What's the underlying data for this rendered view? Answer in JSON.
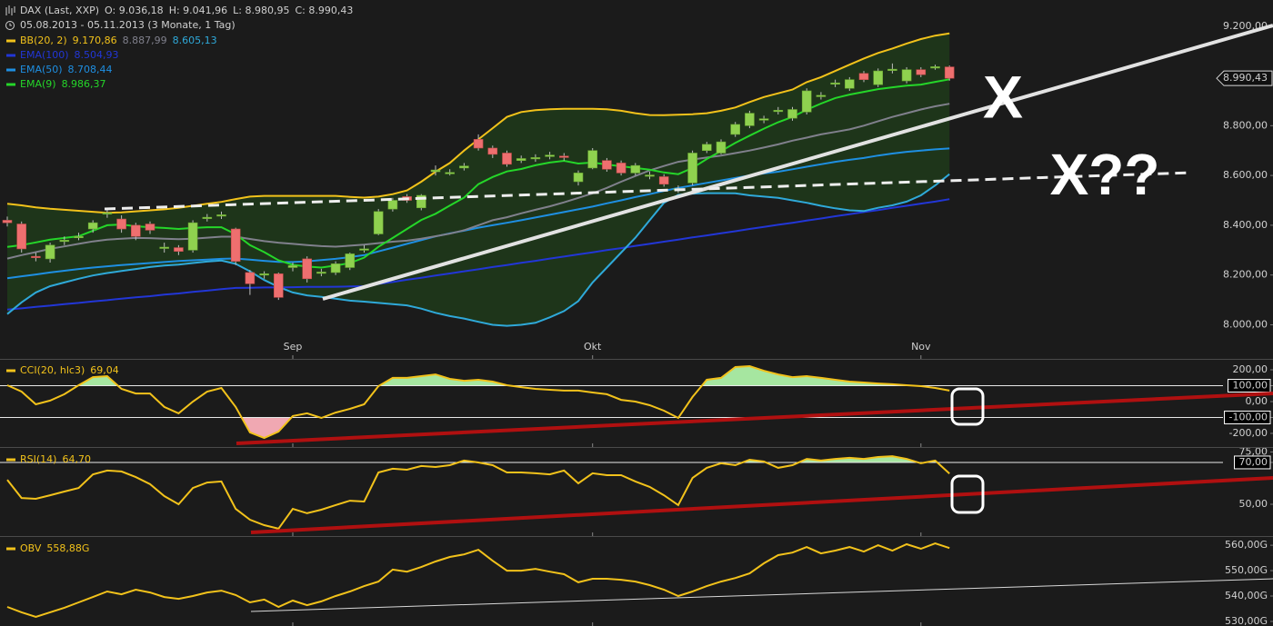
{
  "chart_data": [
    {
      "type": "candlestick",
      "title": "DAX (Last, XXP)",
      "ohlc_labels": [
        "O: 9.036,18",
        "H: 9.041,96",
        "L: 8.980,95",
        "C: 8.990,43"
      ],
      "subtitle": "05.08.2013 - 05.11.2013 (3 Monate, 1 Tag)",
      "close_label": "8.990,43",
      "annotations": [
        "X",
        "X??"
      ],
      "categories": [
        null,
        null,
        null,
        null,
        null,
        null,
        null,
        null,
        null,
        null,
        null,
        null,
        null,
        null,
        null,
        null,
        null,
        null,
        null,
        null,
        "Sep",
        null,
        null,
        null,
        null,
        null,
        null,
        null,
        null,
        null,
        null,
        null,
        null,
        null,
        null,
        null,
        null,
        null,
        null,
        null,
        null,
        "Okt",
        null,
        null,
        null,
        null,
        null,
        null,
        null,
        null,
        null,
        null,
        null,
        null,
        null,
        null,
        null,
        null,
        null,
        null,
        null,
        null,
        null,
        null,
        "Nov",
        null,
        null
      ],
      "open": [
        8420,
        8405,
        8275,
        8265,
        8335,
        8350,
        8385,
        8445,
        8425,
        8400,
        8405,
        8310,
        8310,
        8300,
        8428,
        8438,
        8385,
        8210,
        8200,
        8205,
        8230,
        8265,
        8210,
        8210,
        8230,
        8300,
        8365,
        8465,
        8515,
        8470,
        8615,
        8608,
        8630,
        8745,
        8710,
        8690,
        8660,
        8668,
        8676,
        8678,
        8575,
        8630,
        8660,
        8650,
        8610,
        8598,
        8595,
        8543,
        8570,
        8700,
        8690,
        8765,
        8800,
        8822,
        8858,
        8830,
        8855,
        8918,
        8968,
        8950,
        9010,
        8965,
        9023,
        8980,
        9025,
        9033,
        9036.18
      ],
      "high": [
        8435,
        8415,
        8290,
        8330,
        8355,
        8370,
        8420,
        8465,
        8440,
        8410,
        8415,
        8330,
        8320,
        8420,
        8445,
        8455,
        8390,
        8220,
        8215,
        8210,
        8250,
        8275,
        8225,
        8255,
        8290,
        8320,
        8465,
        8510,
        8525,
        8525,
        8640,
        8625,
        8650,
        8765,
        8720,
        8700,
        8680,
        8685,
        8695,
        8690,
        8620,
        8710,
        8670,
        8660,
        8650,
        8615,
        8605,
        8560,
        8700,
        8735,
        8745,
        8815,
        8860,
        8840,
        8875,
        8875,
        8950,
        8935,
        8985,
        8995,
        9020,
        9030,
        9050,
        9035,
        9035,
        9045,
        9041.96
      ],
      "low": [
        8395,
        8290,
        8255,
        8250,
        8320,
        8340,
        8370,
        8430,
        8370,
        8340,
        8365,
        8290,
        8280,
        8290,
        8415,
        8425,
        8240,
        8120,
        8185,
        8100,
        8215,
        8170,
        8195,
        8200,
        8220,
        8290,
        8360,
        8455,
        8490,
        8460,
        8600,
        8600,
        8620,
        8700,
        8670,
        8635,
        8650,
        8655,
        8665,
        8660,
        8560,
        8625,
        8615,
        8600,
        8600,
        8585,
        8555,
        8530,
        8560,
        8690,
        8685,
        8755,
        8790,
        8810,
        8845,
        8820,
        8845,
        8905,
        8955,
        8940,
        8975,
        8955,
        9010,
        8970,
        8995,
        9025,
        8980.95
      ],
      "close": [
        8410,
        8305,
        8270,
        8320,
        8340,
        8355,
        8410,
        8450,
        8385,
        8355,
        8380,
        8312,
        8295,
        8410,
        8432,
        8442,
        8255,
        8165,
        8205,
        8110,
        8238,
        8185,
        8212,
        8245,
        8285,
        8305,
        8455,
        8500,
        8500,
        8520,
        8622,
        8612,
        8638,
        8710,
        8685,
        8645,
        8668,
        8672,
        8682,
        8672,
        8610,
        8700,
        8625,
        8610,
        8640,
        8602,
        8565,
        8547,
        8690,
        8725,
        8735,
        8805,
        8850,
        8828,
        8862,
        8865,
        8940,
        8922,
        8972,
        8985,
        8985,
        9020,
        9027,
        9025,
        9005,
        9037,
        8990.43
      ],
      "up_color": "#8fd14f",
      "down_color": "#ee6f6f",
      "band_fill": "#1f3a1a",
      "series": [
        {
          "name": "BB(20, 2)",
          "color": "#f2c21b",
          "last_label": "9.170,86",
          "values": [
            8486,
            8480,
            8472,
            8466,
            8462,
            8458,
            8454,
            8450,
            8452,
            8456,
            8460,
            8464,
            8470,
            8478,
            8486,
            8494,
            8505,
            8515,
            8518,
            8518,
            8518,
            8518,
            8518,
            8518,
            8514,
            8511,
            8515,
            8525,
            8540,
            8575,
            8615,
            8650,
            8700,
            8745,
            8790,
            8835,
            8855,
            8862,
            8866,
            8868,
            8868,
            8868,
            8866,
            8860,
            8850,
            8843,
            8842,
            8844,
            8846,
            8850,
            8860,
            8873,
            8895,
            8915,
            8930,
            8945,
            8975,
            8995,
            9020,
            9045,
            9070,
            9092,
            9110,
            9130,
            9148,
            9162,
            9170.86
          ]
        },
        {
          "color": "#80808c",
          "last_label": "8.887,99",
          "values": [
            8266,
            8280,
            8292,
            8305,
            8315,
            8325,
            8335,
            8342,
            8346,
            8349,
            8348,
            8346,
            8344,
            8346,
            8350,
            8354,
            8354,
            8345,
            8336,
            8330,
            8325,
            8320,
            8316,
            8314,
            8318,
            8322,
            8328,
            8334,
            8338,
            8346,
            8356,
            8366,
            8380,
            8400,
            8420,
            8432,
            8448,
            8462,
            8476,
            8492,
            8510,
            8528,
            8550,
            8575,
            8598,
            8620,
            8638,
            8655,
            8664,
            8672,
            8680,
            8690,
            8700,
            8712,
            8725,
            8740,
            8752,
            8765,
            8775,
            8785,
            8800,
            8818,
            8835,
            8850,
            8865,
            8878,
            8887.99
          ]
        },
        {
          "color": "#2fa9d9",
          "last_label": "8.605,13",
          "values": [
            8043,
            8090,
            8130,
            8155,
            8170,
            8185,
            8198,
            8208,
            8216,
            8224,
            8232,
            8238,
            8242,
            8248,
            8254,
            8258,
            8245,
            8215,
            8180,
            8152,
            8130,
            8118,
            8112,
            8105,
            8097,
            8093,
            8088,
            8083,
            8078,
            8065,
            8048,
            8035,
            8025,
            8012,
            8000,
            7996,
            8000,
            8008,
            8030,
            8055,
            8095,
            8170,
            8230,
            8290,
            8350,
            8420,
            8490,
            8522,
            8527,
            8529,
            8529,
            8528,
            8520,
            8515,
            8510,
            8500,
            8490,
            8478,
            8468,
            8460,
            8457,
            8470,
            8480,
            8495,
            8520,
            8560,
            8605.13
          ]
        },
        {
          "name": "EMA(100)",
          "color": "#2236d6",
          "last_label": "8.504,93",
          "values": [
            8061,
            8066,
            8072,
            8077,
            8083,
            8088,
            8094,
            8099,
            8105,
            8110,
            8115,
            8121,
            8126,
            8132,
            8137,
            8143,
            8148,
            8149,
            8150,
            8150,
            8151,
            8152,
            8152,
            8153,
            8154,
            8155,
            8164,
            8172,
            8181,
            8189,
            8198,
            8206,
            8215,
            8223,
            8232,
            8240,
            8249,
            8257,
            8266,
            8274,
            8283,
            8291,
            8300,
            8308,
            8317,
            8325,
            8334,
            8342,
            8351,
            8359,
            8368,
            8376,
            8385,
            8393,
            8402,
            8410,
            8419,
            8427,
            8436,
            8444,
            8453,
            8461,
            8470,
            8478,
            8487,
            8495,
            8504.93
          ]
        },
        {
          "name": "EMA(50)",
          "color": "#1e8fe2",
          "last_label": "8.708,44",
          "values": [
            8187,
            8195,
            8202,
            8210,
            8217,
            8224,
            8230,
            8235,
            8240,
            8244,
            8248,
            8252,
            8256,
            8259,
            8262,
            8265,
            8266,
            8262,
            8257,
            8253,
            8252,
            8255,
            8260,
            8265,
            8272,
            8280,
            8295,
            8310,
            8325,
            8340,
            8355,
            8367,
            8378,
            8390,
            8400,
            8410,
            8420,
            8431,
            8442,
            8453,
            8464,
            8475,
            8488,
            8500,
            8513,
            8525,
            8538,
            8550,
            8560,
            8570,
            8580,
            8590,
            8600,
            8608,
            8615,
            8625,
            8635,
            8645,
            8655,
            8663,
            8670,
            8680,
            8688,
            8695,
            8700,
            8705,
            8708.44
          ]
        },
        {
          "name": "EMA(9)",
          "color": "#25d629",
          "last_label": "8.986,37",
          "values": [
            8313,
            8320,
            8331,
            8342,
            8349,
            8356,
            8378,
            8400,
            8403,
            8396,
            8392,
            8389,
            8385,
            8389,
            8392,
            8392,
            8364,
            8320,
            8292,
            8259,
            8241,
            8234,
            8230,
            8238,
            8248,
            8270,
            8313,
            8349,
            8385,
            8421,
            8446,
            8479,
            8511,
            8565,
            8594,
            8616,
            8626,
            8641,
            8652,
            8659,
            8648,
            8652,
            8644,
            8637,
            8630,
            8623,
            8612,
            8605,
            8630,
            8666,
            8698,
            8731,
            8760,
            8788,
            8814,
            8835,
            8864,
            8889,
            8911,
            8925,
            8936,
            8947,
            8954,
            8961,
            8965,
            8976,
            8986.37
          ]
        }
      ],
      "ylim": [
        7863,
        9305
      ],
      "yticks": [
        {
          "value": 8000,
          "label": "8.000,00"
        },
        {
          "value": 8200,
          "label": "8.200,00"
        },
        {
          "value": 8400,
          "label": "8.400,00"
        },
        {
          "value": 8600,
          "label": "8.600,00"
        },
        {
          "value": 8800,
          "label": "8.800,00"
        },
        {
          "value": 9200,
          "label": "9.200,00"
        }
      ]
    },
    {
      "type": "line",
      "name": "CCI(20, hlc3)",
      "last_label": "69,04",
      "color": "#f2c21b",
      "overbought_fill": "#a6e6a0",
      "oversold_fill": "#f0a8b2",
      "values": [
        103,
        63,
        -17,
        6,
        46,
        103,
        154,
        160,
        80,
        51,
        51,
        -34,
        -74,
        0,
        63,
        86,
        -34,
        -194,
        -229,
        -189,
        -91,
        -74,
        -103,
        -69,
        -46,
        -17,
        97,
        149,
        149,
        160,
        171,
        143,
        131,
        137,
        126,
        103,
        91,
        80,
        74,
        69,
        69,
        57,
        46,
        11,
        0,
        -23,
        -57,
        -103,
        29,
        137,
        149,
        217,
        223,
        194,
        171,
        154,
        160,
        149,
        137,
        126,
        120,
        114,
        109,
        103,
        97,
        86,
        69.04
      ],
      "ylim": [
        -286,
        263
      ],
      "yticks": [
        {
          "value": 200,
          "label": "200,00"
        },
        {
          "value": 100,
          "label": "100,00"
        },
        {
          "value": 0,
          "label": "0,00"
        },
        {
          "value": -100,
          "label": "-100,00"
        },
        {
          "value": -200,
          "label": "-200,00"
        }
      ],
      "reference_lines": [
        100,
        -100
      ]
    },
    {
      "type": "line",
      "name": "RSI(14)",
      "last_label": "64,70",
      "color": "#f2c21b",
      "overbought_fill": "#a6e6a0",
      "values": [
        61.7,
        53.0,
        52.6,
        54.3,
        56.1,
        57.8,
        64.3,
        66.1,
        65.7,
        63.0,
        59.6,
        53.9,
        50.0,
        57.8,
        60.4,
        60.9,
        47.8,
        42.6,
        40.0,
        38.3,
        47.8,
        45.7,
        47.4,
        49.6,
        51.7,
        51.3,
        65.2,
        67.0,
        66.5,
        68.3,
        67.8,
        68.7,
        70.9,
        70.0,
        68.7,
        65.2,
        65.2,
        64.8,
        64.3,
        66.1,
        60.0,
        64.8,
        63.9,
        63.9,
        60.9,
        58.3,
        54.3,
        49.6,
        62.6,
        67.4,
        69.6,
        68.7,
        71.3,
        70.4,
        67.4,
        68.7,
        71.7,
        70.9,
        71.7,
        72.2,
        71.7,
        72.6,
        73.0,
        71.7,
        69.6,
        70.9,
        64.7
      ],
      "ylim": [
        34.8,
        76.5
      ],
      "yticks": [
        {
          "value": 75,
          "label": "75,00"
        },
        {
          "value": 70,
          "label": "70,00"
        },
        {
          "value": 50,
          "label": "50,00"
        }
      ],
      "reference_lines": [
        70
      ]
    },
    {
      "type": "line",
      "name": "OBV",
      "last_label": "558,88G",
      "color": "#f2c21b",
      "values": [
        535.7,
        533.6,
        531.8,
        533.6,
        535.4,
        537.5,
        539.6,
        541.8,
        540.7,
        542.5,
        541.4,
        539.6,
        538.9,
        540.0,
        541.4,
        542.1,
        540.4,
        537.5,
        538.6,
        535.7,
        538.2,
        536.4,
        537.9,
        540.0,
        541.8,
        543.9,
        545.7,
        550.4,
        549.6,
        551.4,
        553.6,
        555.4,
        556.4,
        558.2,
        553.9,
        550.0,
        550.0,
        550.7,
        549.6,
        548.6,
        545.4,
        546.8,
        546.8,
        546.4,
        545.7,
        544.3,
        542.5,
        540.0,
        541.8,
        543.9,
        545.7,
        547.1,
        548.9,
        552.9,
        556.1,
        557.1,
        559.3,
        556.8,
        557.9,
        559.3,
        557.5,
        560.0,
        557.9,
        560.4,
        558.6,
        560.7,
        558.88
      ],
      "ylim": [
        528.2,
        562.9
      ],
      "yticks": [
        {
          "value": 560,
          "label": "560,00G"
        },
        {
          "value": 550,
          "label": "550,00G"
        },
        {
          "value": 540,
          "label": "540,00G"
        },
        {
          "value": 530,
          "label": "530,00G"
        }
      ]
    }
  ]
}
